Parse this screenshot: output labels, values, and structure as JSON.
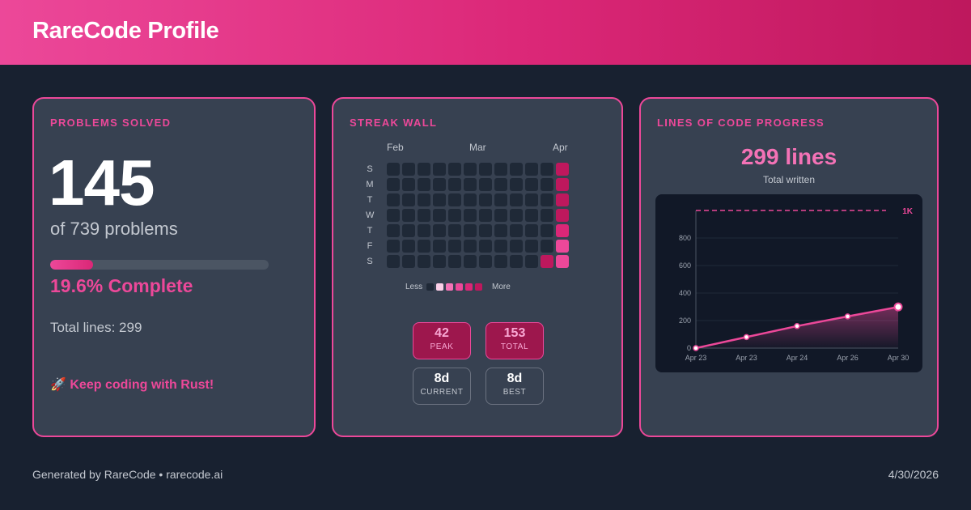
{
  "header": {
    "title": "RareCode Profile"
  },
  "problems_card": {
    "title": "PROBLEMS SOLVED",
    "solved": "145",
    "of_text": "of 739 problems",
    "progress_fraction": 0.196,
    "progress_text": "19.6% Complete",
    "total_lines_text": "Total lines: 299",
    "motivation_emoji": "🚀",
    "motivation_text": "Keep coding with Rust!"
  },
  "streak_card": {
    "title": "STREAK WALL",
    "months": [
      "Feb",
      "Mar",
      "Apr"
    ],
    "day_labels": [
      "S",
      "M",
      "T",
      "W",
      "T",
      "F",
      "S"
    ],
    "weeks": 12,
    "activity_last_week": [
      4,
      4,
      4,
      4,
      3,
      2,
      2
    ],
    "activity_second_last_week": [
      0,
      0,
      0,
      0,
      0,
      0,
      4
    ],
    "legend_less": "Less",
    "legend_more": "More",
    "level_colors": [
      "#1f2937",
      "#fbcfe8",
      "#f472b6",
      "#ec4899",
      "#db2777",
      "#be185d"
    ],
    "stats": [
      {
        "value": "42",
        "label": "PEAK",
        "style": "pink"
      },
      {
        "value": "153",
        "label": "TOTAL",
        "style": "pink"
      },
      {
        "value": "8d",
        "label": "CURRENT",
        "style": "dark"
      },
      {
        "value": "8d",
        "label": "BEST",
        "style": "dark"
      }
    ]
  },
  "loc_card": {
    "title": "LINES OF CODE PROGRESS",
    "value_text": "299 lines",
    "subtitle": "Total written",
    "goal_label": "1K"
  },
  "chart_data": {
    "type": "area",
    "x_tick_labels": [
      "Apr 23",
      "Apr 23",
      "Apr 24",
      "Apr 26",
      "Apr 30"
    ],
    "y_ticks": [
      0,
      200,
      400,
      600,
      800
    ],
    "ylim": [
      0,
      1000
    ],
    "goal": 1000,
    "points": [
      0,
      80,
      160,
      230,
      299
    ],
    "color": "#ec4899"
  },
  "footer": {
    "left": "Generated by RareCode • rarecode.ai",
    "right": "4/30/2026"
  }
}
